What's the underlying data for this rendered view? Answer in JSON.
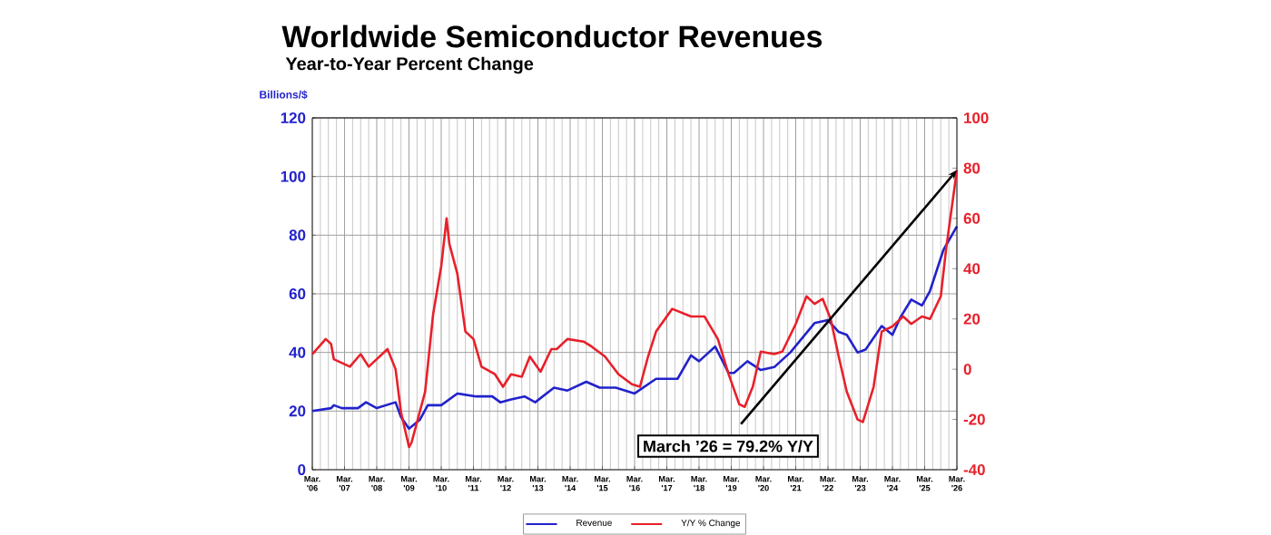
{
  "chart_data": {
    "type": "line",
    "title": "Worldwide Semiconductor Revenues",
    "subtitle": "Year-to-Year Percent Change",
    "ylabel": "Billions/$",
    "xlim": [
      "2006-03",
      "2026-03"
    ],
    "xticks": [
      {
        "value": "2006-03",
        "label": "Mar. '06"
      },
      {
        "value": "2007-03",
        "label": "Mar. '07"
      },
      {
        "value": "2008-03",
        "label": "Mar. '08"
      },
      {
        "value": "2009-03",
        "label": "Mar. '09"
      },
      {
        "value": "2010-03",
        "label": "Mar. '10"
      },
      {
        "value": "2011-03",
        "label": "Mar. '11"
      },
      {
        "value": "2012-03",
        "label": "Mar. '12"
      },
      {
        "value": "2013-03",
        "label": "Mar. '13"
      },
      {
        "value": "2014-03",
        "label": "Mar. '14"
      },
      {
        "value": "2015-03",
        "label": "Mar. '15"
      },
      {
        "value": "2016-03",
        "label": "Mar. '16"
      },
      {
        "value": "2017-03",
        "label": "Mar. '17"
      },
      {
        "value": "2018-03",
        "label": "Mar. '18"
      },
      {
        "value": "2019-03",
        "label": "Mar. '19"
      },
      {
        "value": "2020-03",
        "label": "Mar. '20"
      },
      {
        "value": "2021-03",
        "label": "Mar. '21"
      },
      {
        "value": "2022-03",
        "label": "Mar. '22"
      },
      {
        "value": "2023-03",
        "label": "Mar. '23"
      },
      {
        "value": "2024-03",
        "label": "Mar. '24"
      },
      {
        "value": "2025-03",
        "label": "Mar. '25"
      },
      {
        "value": "2026-03",
        "label": "Mar. '26"
      }
    ],
    "ylim": [
      0,
      120
    ],
    "yticks": [
      0,
      20,
      40,
      60,
      80,
      100,
      120
    ],
    "y2lim": [
      -40,
      100
    ],
    "y2ticks": [
      -40,
      -20,
      0,
      20,
      40,
      60,
      80,
      100
    ],
    "series": [
      {
        "name": "Revenue",
        "color": "#2222cc",
        "axis": "y",
        "x": [
          "2006-03",
          "2006-10",
          "2006-11",
          "2007-02",
          "2007-08",
          "2007-11",
          "2008-03",
          "2008-10",
          "2008-12",
          "2009-03",
          "2009-07",
          "2009-10",
          "2010-03",
          "2010-09",
          "2011-04",
          "2011-10",
          "2012-01",
          "2012-05",
          "2012-10",
          "2013-02",
          "2013-09",
          "2014-02",
          "2014-09",
          "2015-02",
          "2015-08",
          "2016-03",
          "2016-11",
          "2017-07",
          "2017-12",
          "2018-03",
          "2018-09",
          "2019-02",
          "2019-04",
          "2019-09",
          "2020-02",
          "2020-07",
          "2021-01",
          "2021-10",
          "2022-03",
          "2022-07",
          "2022-10",
          "2023-02",
          "2023-05",
          "2023-11",
          "2024-03",
          "2024-06",
          "2024-10",
          "2025-02",
          "2025-05",
          "2025-10",
          "2026-03"
        ],
        "values": [
          20,
          21,
          22,
          21,
          21,
          23,
          21,
          23,
          18,
          14,
          17,
          22,
          22,
          26,
          25,
          25,
          23,
          24,
          25,
          23,
          28,
          27,
          30,
          28,
          28,
          26,
          31,
          31,
          39,
          37,
          42,
          33,
          33,
          37,
          34,
          35,
          40,
          50,
          51,
          47,
          46,
          40,
          41,
          49,
          46,
          52,
          58,
          56,
          61,
          75,
          83
        ]
      },
      {
        "name": "Y/Y % Change",
        "color": "#e8202a",
        "axis": "y2",
        "x": [
          "2006-03",
          "2006-08",
          "2006-10",
          "2006-11",
          "2007-05",
          "2007-09",
          "2007-12",
          "2008-07",
          "2008-10",
          "2008-12",
          "2009-03",
          "2009-04",
          "2009-09",
          "2009-12",
          "2010-03",
          "2010-05",
          "2010-06",
          "2010-09",
          "2010-12",
          "2011-03",
          "2011-06",
          "2011-11",
          "2012-02",
          "2012-05",
          "2012-09",
          "2012-12",
          "2013-04",
          "2013-08",
          "2013-10",
          "2014-02",
          "2014-08",
          "2014-11",
          "2015-04",
          "2015-09",
          "2016-02",
          "2016-05",
          "2016-08",
          "2016-11",
          "2017-05",
          "2017-12",
          "2018-05",
          "2018-10",
          "2019-02",
          "2019-06",
          "2019-08",
          "2019-11",
          "2020-02",
          "2020-07",
          "2020-10",
          "2021-03",
          "2021-07",
          "2021-10",
          "2022-01",
          "2022-04",
          "2022-07",
          "2022-10",
          "2023-02",
          "2023-04",
          "2023-08",
          "2023-11",
          "2024-03",
          "2024-07",
          "2024-10",
          "2025-02",
          "2025-05",
          "2025-09",
          "2025-11",
          "2026-03"
        ],
        "values": [
          6,
          12,
          10,
          4,
          1,
          6,
          1,
          8,
          0,
          -17,
          -31,
          -29,
          -9,
          22,
          41,
          60,
          50,
          38,
          15,
          12,
          1,
          -2,
          -7,
          -2,
          -3,
          5,
          -1,
          8,
          8,
          12,
          11,
          9,
          5,
          -2,
          -6,
          -7,
          5,
          15,
          24,
          21,
          21,
          12,
          -2,
          -14,
          -15,
          -7,
          7,
          6,
          7,
          18,
          29,
          26,
          28,
          20,
          5,
          -9,
          -20,
          -21,
          -7,
          15,
          17,
          21,
          18,
          21,
          20,
          29,
          48,
          79.2
        ]
      }
    ],
    "annotations": [
      "March ’26 = 79.2% Y/Y"
    ],
    "grid": true,
    "legend": "bottom",
    "marker": "none",
    "line_style": "solid"
  }
}
